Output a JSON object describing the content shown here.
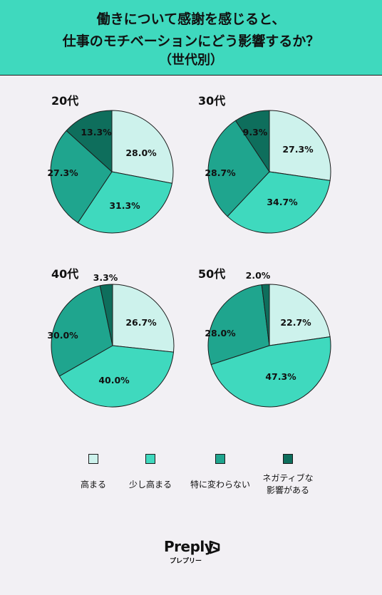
{
  "header": {
    "title_line1": "働きについて感謝を感じると、",
    "title_line2": "仕事のモチベーションにどう影響するか？",
    "title_line3": "（世代別）"
  },
  "colors": {
    "header_bg": "#3fd9be",
    "background": "#f2f0f4",
    "series": [
      "#cdf2ec",
      "#3fd9be",
      "#1fa58e",
      "#0e6e5c"
    ]
  },
  "legend": {
    "items": [
      {
        "label": "高まる"
      },
      {
        "label": "少し高まる"
      },
      {
        "label": "特に変わらない"
      },
      {
        "label_line1": "ネガティブな",
        "label_line2": "影響がある"
      }
    ]
  },
  "chart_data": [
    {
      "type": "pie",
      "title": "20代",
      "series": [
        "高まる",
        "少し高まる",
        "特に変わらない",
        "ネガティブな影響がある"
      ],
      "values": [
        28.0,
        31.3,
        27.3,
        13.3
      ],
      "labels": [
        "28.0%",
        "31.3%",
        "27.3%",
        "13.3%"
      ]
    },
    {
      "type": "pie",
      "title": "30代",
      "series": [
        "高まる",
        "少し高まる",
        "特に変わらない",
        "ネガティブな影響がある"
      ],
      "values": [
        27.3,
        34.7,
        28.7,
        9.3
      ],
      "labels": [
        "27.3%",
        "34.7%",
        "28.7%",
        "9.3%"
      ]
    },
    {
      "type": "pie",
      "title": "40代",
      "series": [
        "高まる",
        "少し高まる",
        "特に変わらない",
        "ネガティブな影響がある"
      ],
      "values": [
        26.7,
        40.0,
        30.0,
        3.3
      ],
      "labels": [
        "26.7%",
        "40.0%",
        "30.0%",
        "3.3%"
      ]
    },
    {
      "type": "pie",
      "title": "50代",
      "series": [
        "高まる",
        "少し高まる",
        "特に変わらない",
        "ネガティブな影響がある"
      ],
      "values": [
        22.7,
        47.3,
        28.0,
        2.0
      ],
      "labels": [
        "22.7%",
        "47.3%",
        "28.0%",
        "2.0%"
      ]
    }
  ],
  "brand": {
    "name": "Preply",
    "sub": "プレプリー",
    "icon": "preply-logo-icon"
  }
}
